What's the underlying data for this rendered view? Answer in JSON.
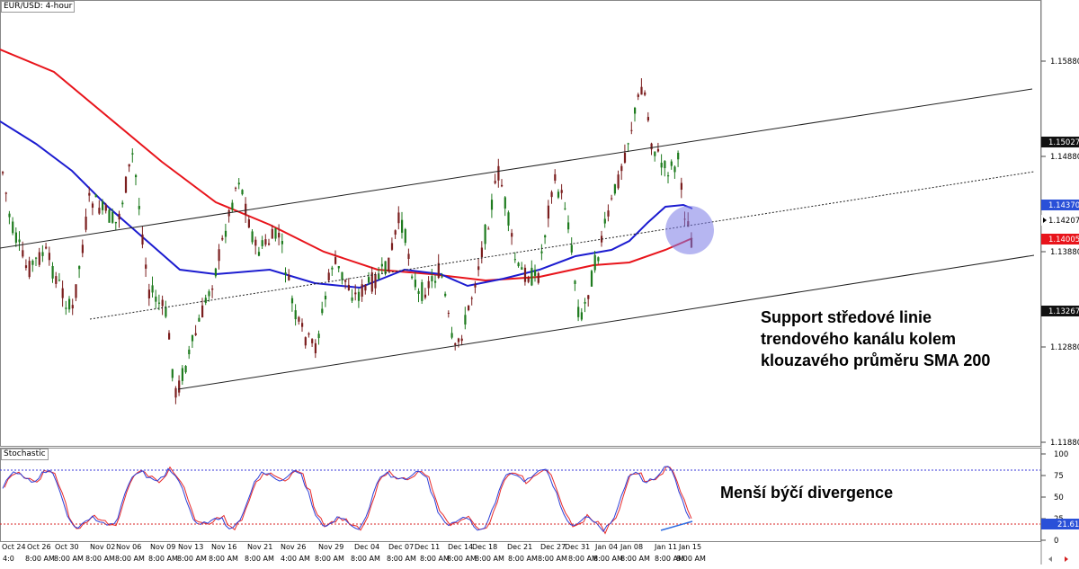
{
  "header": {
    "symbol_label": "EUR/USD: 4-hour",
    "stoch_label": "Stochastic"
  },
  "price_axis": {
    "ticks": [
      "1.15880",
      "1.14880",
      "1.13880",
      "1.12880",
      "1.11880"
    ],
    "markers": [
      {
        "label": "1.15027",
        "type": "tag-dark"
      },
      {
        "label": "1.14370",
        "type": "tag-blue"
      },
      {
        "label": "1.14207",
        "type": "tag-current"
      },
      {
        "label": "1.14005",
        "type": "tag-red"
      },
      {
        "label": "1.13267",
        "type": "tag-dark"
      }
    ]
  },
  "stoch_axis": {
    "ticks": [
      "100",
      "75",
      "50",
      "25",
      "0"
    ],
    "marker": "21.61"
  },
  "annotations": {
    "channel_text": [
      "Support středové linie",
      "trendového kanálu kolem",
      "klouzavého průměru SMA 200"
    ],
    "divergence_text": "Menší býčí divergence"
  },
  "x_axis": {
    "dates": [
      "Oct 24",
      "Oct 26",
      "Oct 30",
      "Nov 02",
      "Nov 06",
      "Nov 09",
      "Nov 13",
      "Nov 16",
      "Nov 21",
      "Nov 26",
      "Nov 29",
      "Dec 04",
      "Dec 07",
      "Dec 11",
      "Dec 14",
      "Dec 18",
      "Dec 21",
      "Dec 27",
      "Dec 31",
      "Jan 04",
      "Jan 08",
      "Jan 11",
      "Jan 15"
    ],
    "times": [
      "4:0",
      "8:00 AM",
      "8:00 AM",
      "8:00 AM",
      "8:00 AM",
      "8:00 AM",
      "8:00 AM",
      "8:00 AM",
      "8:00 AM",
      "4:00 AM",
      "8:00 AM",
      "8:00 AM",
      "8:00 AM",
      "8:00 AM",
      "8:00 AM",
      "8:00 AM",
      "8:00 AM",
      "8:00 AM",
      "8:00 AM",
      "8:00 AM",
      "8:00 AM",
      "8:00 AM",
      "8:00 AM"
    ]
  },
  "colors": {
    "sma200": "#e8141b",
    "sma100": "#1c1cd0",
    "bull": "#1e7b1e",
    "bear": "#7b1e1e",
    "highlight": "#7a7ae6",
    "stoch_k": "#2d3fd8",
    "stoch_d": "#e82a2a"
  },
  "icons": [
    "scroll-arrows-icon"
  ]
}
